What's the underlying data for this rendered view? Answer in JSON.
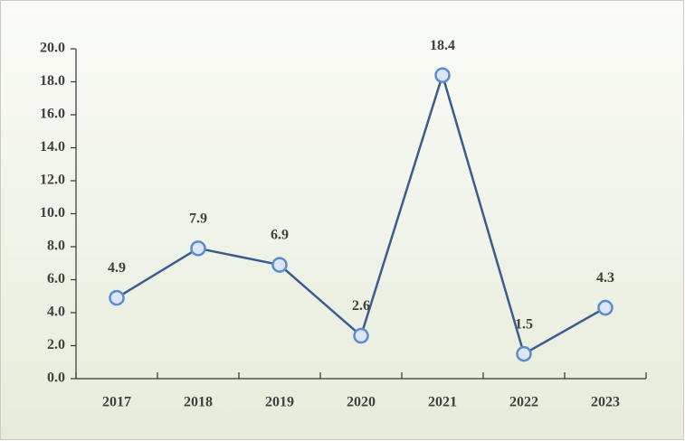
{
  "chart_data": {
    "type": "line",
    "categories": [
      "2017",
      "2018",
      "2019",
      "2020",
      "2021",
      "2022",
      "2023"
    ],
    "values": [
      4.9,
      7.9,
      6.9,
      2.6,
      18.4,
      1.5,
      4.3
    ],
    "color": "#3b5c8f",
    "ylim": [
      0,
      20
    ],
    "yticks": [
      {
        "value": 0,
        "label": "0.0"
      },
      {
        "value": 2,
        "label": "2.0"
      },
      {
        "value": 4,
        "label": "4.0"
      },
      {
        "value": 6,
        "label": "6.0"
      },
      {
        "value": 8,
        "label": "8.0"
      },
      {
        "value": 10,
        "label": "10.0"
      },
      {
        "value": 12,
        "label": "12.0"
      },
      {
        "value": 14,
        "label": "14.0"
      },
      {
        "value": 16,
        "label": "16.0"
      },
      {
        "value": 18,
        "label": "18.0"
      },
      {
        "value": 20,
        "label": "20.0"
      }
    ]
  }
}
